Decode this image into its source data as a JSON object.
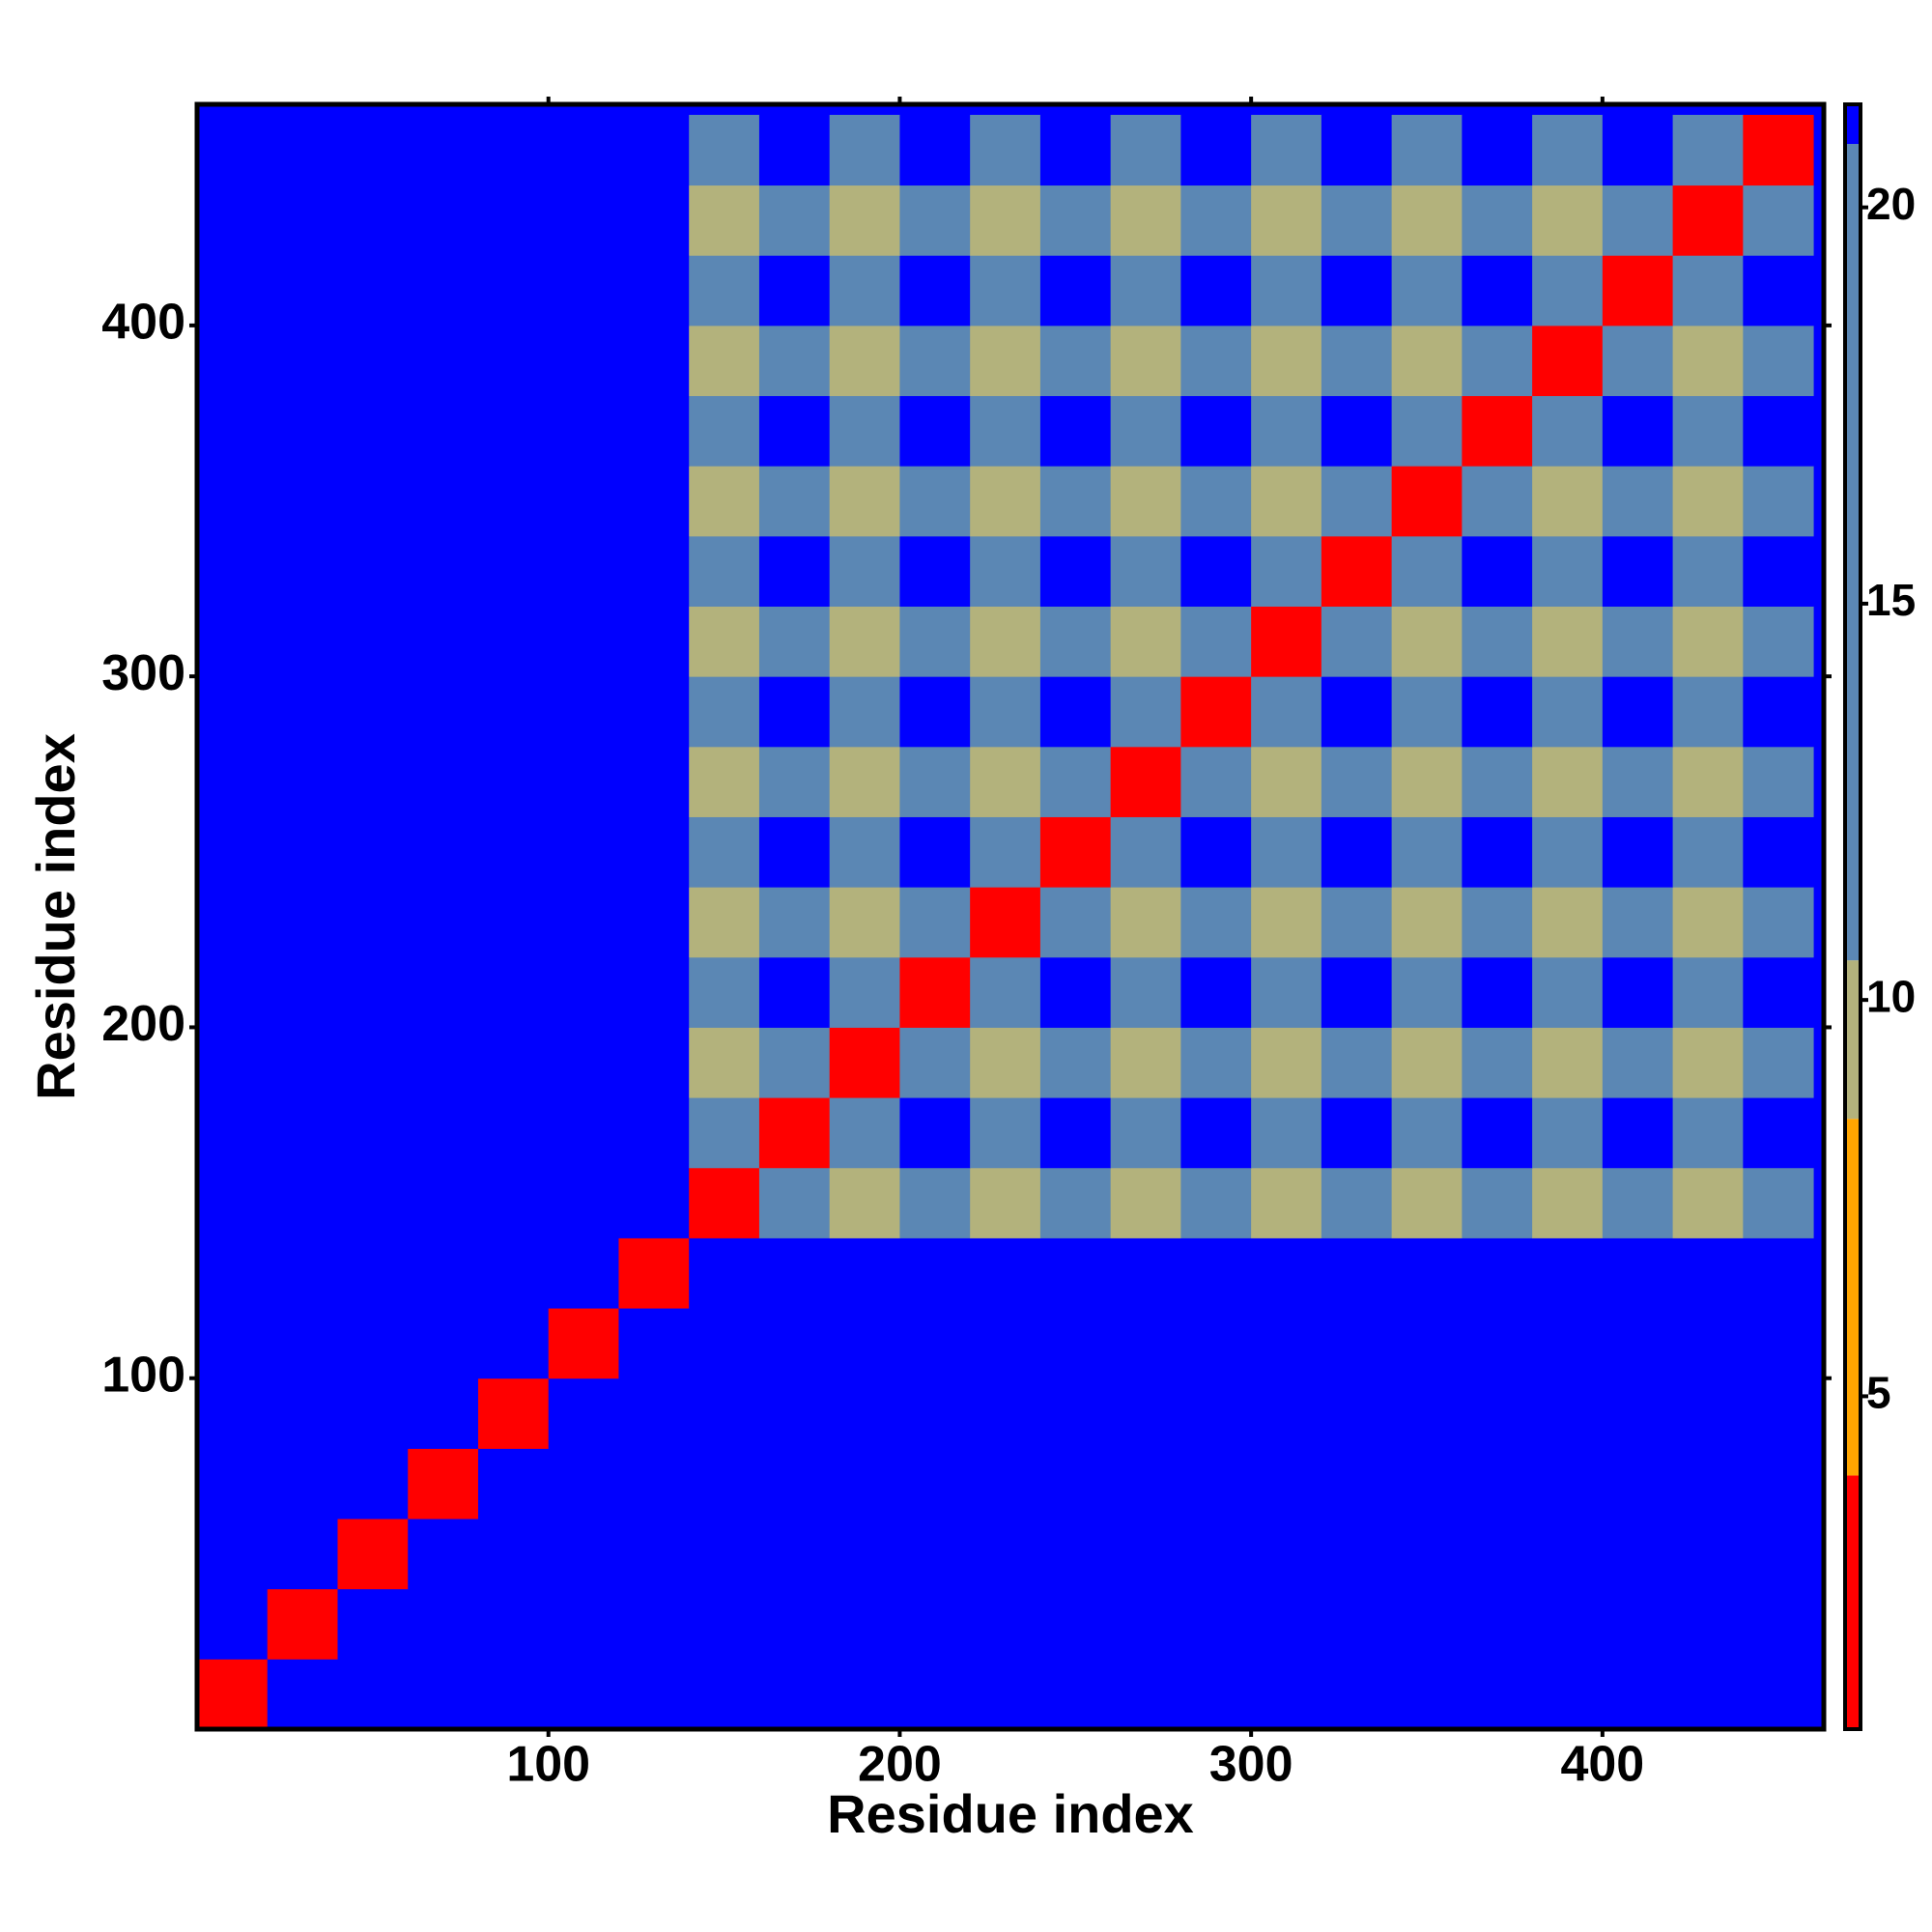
{
  "chart_data": {
    "type": "heatmap",
    "xlabel": "Residue index",
    "ylabel": "Residue index",
    "xlim": [
      0,
      463
    ],
    "ylim": [
      0,
      463
    ],
    "xticks": [
      100,
      200,
      300,
      400
    ],
    "yticks": [
      100,
      200,
      300,
      400
    ],
    "xbins": [
      0,
      20,
      40,
      60,
      80,
      100,
      120,
      140,
      160,
      180,
      200,
      220,
      240,
      260,
      280,
      300,
      320,
      340,
      360,
      380,
      400,
      420,
      440,
      460
    ],
    "ybins": [
      0,
      20,
      40,
      60,
      80,
      100,
      120,
      140,
      160,
      180,
      200,
      220,
      240,
      260,
      280,
      300,
      320,
      340,
      360,
      380,
      400,
      420,
      440,
      460
    ],
    "z": [
      [
        3,
        21,
        21,
        21,
        21,
        21,
        21,
        21,
        21,
        21,
        21,
        21,
        21,
        21,
        21,
        21,
        21,
        21,
        21,
        21,
        21,
        21,
        21
      ],
      [
        21,
        3,
        21,
        21,
        21,
        21,
        21,
        21,
        21,
        21,
        21,
        21,
        21,
        21,
        21,
        21,
        21,
        21,
        21,
        21,
        21,
        21,
        21
      ],
      [
        21,
        21,
        3,
        21,
        21,
        21,
        21,
        21,
        21,
        21,
        21,
        21,
        21,
        21,
        21,
        21,
        21,
        21,
        21,
        21,
        21,
        21,
        21
      ],
      [
        21,
        21,
        21,
        3,
        21,
        21,
        21,
        21,
        21,
        21,
        21,
        21,
        21,
        21,
        21,
        21,
        21,
        21,
        21,
        21,
        21,
        21,
        21
      ],
      [
        21,
        21,
        21,
        21,
        3,
        21,
        21,
        21,
        21,
        21,
        21,
        21,
        21,
        21,
        21,
        21,
        21,
        21,
        21,
        21,
        21,
        21,
        21
      ],
      [
        21,
        21,
        21,
        21,
        21,
        3,
        21,
        21,
        21,
        21,
        21,
        21,
        21,
        21,
        21,
        21,
        21,
        21,
        21,
        21,
        21,
        21,
        21
      ],
      [
        21,
        21,
        21,
        21,
        21,
        21,
        3,
        21,
        21,
        21,
        21,
        21,
        21,
        21,
        21,
        21,
        21,
        21,
        21,
        21,
        21,
        21,
        21
      ],
      [
        21,
        21,
        21,
        21,
        21,
        21,
        21,
        3,
        12,
        10,
        13,
        10,
        13,
        10,
        13,
        10,
        13,
        10,
        13,
        10,
        13,
        10,
        13
      ],
      [
        21,
        21,
        21,
        21,
        21,
        21,
        21,
        12,
        3,
        12,
        21,
        13,
        21,
        13,
        21,
        13,
        21,
        13,
        21,
        13,
        21,
        13,
        21
      ],
      [
        21,
        21,
        21,
        21,
        21,
        21,
        21,
        10,
        12,
        3,
        12,
        10,
        13,
        10,
        13,
        10,
        13,
        10,
        13,
        10,
        13,
        10,
        13
      ],
      [
        21,
        21,
        21,
        21,
        21,
        21,
        21,
        13,
        21,
        12,
        3,
        12,
        21,
        13,
        21,
        13,
        21,
        13,
        21,
        13,
        21,
        13,
        21
      ],
      [
        21,
        21,
        21,
        21,
        21,
        21,
        21,
        10,
        13,
        10,
        12,
        3,
        12,
        10,
        13,
        10,
        13,
        10,
        13,
        10,
        13,
        10,
        13
      ],
      [
        21,
        21,
        21,
        21,
        21,
        21,
        21,
        13,
        21,
        13,
        21,
        12,
        3,
        12,
        21,
        13,
        21,
        13,
        21,
        13,
        21,
        13,
        21
      ],
      [
        21,
        21,
        21,
        21,
        21,
        21,
        21,
        10,
        13,
        10,
        13,
        10,
        12,
        3,
        12,
        10,
        13,
        10,
        13,
        10,
        13,
        10,
        13
      ],
      [
        21,
        21,
        21,
        21,
        21,
        21,
        21,
        13,
        21,
        13,
        21,
        13,
        21,
        12,
        3,
        12,
        21,
        13,
        21,
        13,
        21,
        13,
        21
      ],
      [
        21,
        21,
        21,
        21,
        21,
        21,
        21,
        10,
        13,
        10,
        13,
        10,
        13,
        10,
        12,
        3,
        12,
        10,
        13,
        10,
        13,
        10,
        13
      ],
      [
        21,
        21,
        21,
        21,
        21,
        21,
        21,
        13,
        21,
        13,
        21,
        13,
        21,
        13,
        21,
        12,
        3,
        12,
        21,
        13,
        21,
        13,
        21
      ],
      [
        21,
        21,
        21,
        21,
        21,
        21,
        21,
        10,
        13,
        10,
        13,
        10,
        13,
        10,
        13,
        10,
        12,
        3,
        12,
        10,
        13,
        10,
        13
      ],
      [
        21,
        21,
        21,
        21,
        21,
        21,
        21,
        13,
        21,
        13,
        21,
        13,
        21,
        13,
        21,
        13,
        21,
        12,
        3,
        12,
        21,
        13,
        21
      ],
      [
        21,
        21,
        21,
        21,
        21,
        21,
        21,
        10,
        13,
        10,
        13,
        10,
        13,
        10,
        13,
        10,
        13,
        10,
        12,
        3,
        12,
        10,
        13
      ],
      [
        21,
        21,
        21,
        21,
        21,
        21,
        21,
        13,
        21,
        13,
        21,
        13,
        21,
        13,
        21,
        13,
        21,
        13,
        21,
        12,
        3,
        12,
        21
      ],
      [
        21,
        21,
        21,
        21,
        21,
        21,
        21,
        10,
        13,
        10,
        13,
        10,
        13,
        10,
        13,
        10,
        13,
        10,
        13,
        10,
        12,
        3,
        12
      ],
      [
        21,
        21,
        21,
        21,
        21,
        21,
        21,
        13,
        21,
        13,
        21,
        13,
        21,
        13,
        21,
        13,
        21,
        13,
        21,
        13,
        21,
        12,
        3
      ]
    ],
    "clim": [
      0.8,
      21.3
    ],
    "cticks": [
      5,
      10,
      15,
      20
    ],
    "colorscale": [
      {
        "value": 4,
        "color": "#ff0000"
      },
      {
        "value": 8.5,
        "color": "#ffa500"
      },
      {
        "value": 10.5,
        "color": "#b3b27c"
      },
      {
        "value": 20.8,
        "color": "#5b87b4"
      },
      {
        "value": 21.3,
        "color": "#0000ff"
      }
    ]
  }
}
